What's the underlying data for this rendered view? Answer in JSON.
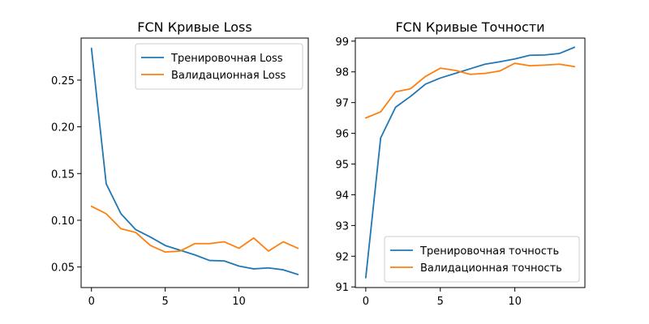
{
  "chart_data": [
    {
      "type": "line",
      "title": "FCN Кривые Loss",
      "xlabel": "",
      "ylabel": "",
      "xlim": [
        -0.7,
        14.7
      ],
      "ylim": [
        0.028,
        0.295
      ],
      "xticks": [
        0,
        5,
        10
      ],
      "yticks": [
        0.05,
        0.1,
        0.15,
        0.2,
        0.25
      ],
      "ytick_labels": [
        "0.05",
        "0.10",
        "0.15",
        "0.20",
        "0.25"
      ],
      "legend_position": "top-right",
      "x": [
        0,
        1,
        2,
        3,
        4,
        5,
        6,
        7,
        8,
        9,
        10,
        11,
        12,
        13,
        14
      ],
      "series": [
        {
          "name": "Тренировочная Loss",
          "color": "#1f77b4",
          "values": [
            0.284,
            0.139,
            0.107,
            0.09,
            0.082,
            0.073,
            0.068,
            0.063,
            0.057,
            0.0565,
            0.051,
            0.048,
            0.049,
            0.047,
            0.042
          ]
        },
        {
          "name": "Валидационная Loss",
          "color": "#ff7f0e",
          "values": [
            0.115,
            0.107,
            0.091,
            0.087,
            0.073,
            0.066,
            0.067,
            0.075,
            0.075,
            0.077,
            0.07,
            0.081,
            0.067,
            0.077,
            0.07
          ]
        }
      ]
    },
    {
      "type": "line",
      "title": "FCN Кривые Точности",
      "xlabel": "",
      "ylabel": "",
      "xlim": [
        -0.7,
        14.7
      ],
      "ylim": [
        90.98,
        99.1
      ],
      "xticks": [
        0,
        5,
        10
      ],
      "yticks": [
        91,
        92,
        93,
        94,
        95,
        96,
        97,
        98,
        99
      ],
      "ytick_labels": [
        "91",
        "92",
        "93",
        "94",
        "95",
        "96",
        "97",
        "98",
        "99"
      ],
      "legend_position": "bottom-right",
      "x": [
        0,
        1,
        2,
        3,
        4,
        5,
        6,
        7,
        8,
        9,
        10,
        11,
        12,
        13,
        14
      ],
      "series": [
        {
          "name": "Тренировочная точность",
          "color": "#1f77b4",
          "values": [
            91.3,
            95.85,
            96.85,
            97.2,
            97.6,
            97.8,
            97.95,
            98.1,
            98.25,
            98.33,
            98.42,
            98.54,
            98.55,
            98.6,
            98.8
          ]
        },
        {
          "name": "Валидационная точность",
          "color": "#ff7f0e",
          "values": [
            96.5,
            96.7,
            97.35,
            97.45,
            97.85,
            98.12,
            98.05,
            97.92,
            97.95,
            98.03,
            98.28,
            98.2,
            98.22,
            98.25,
            98.17
          ]
        }
      ]
    }
  ]
}
